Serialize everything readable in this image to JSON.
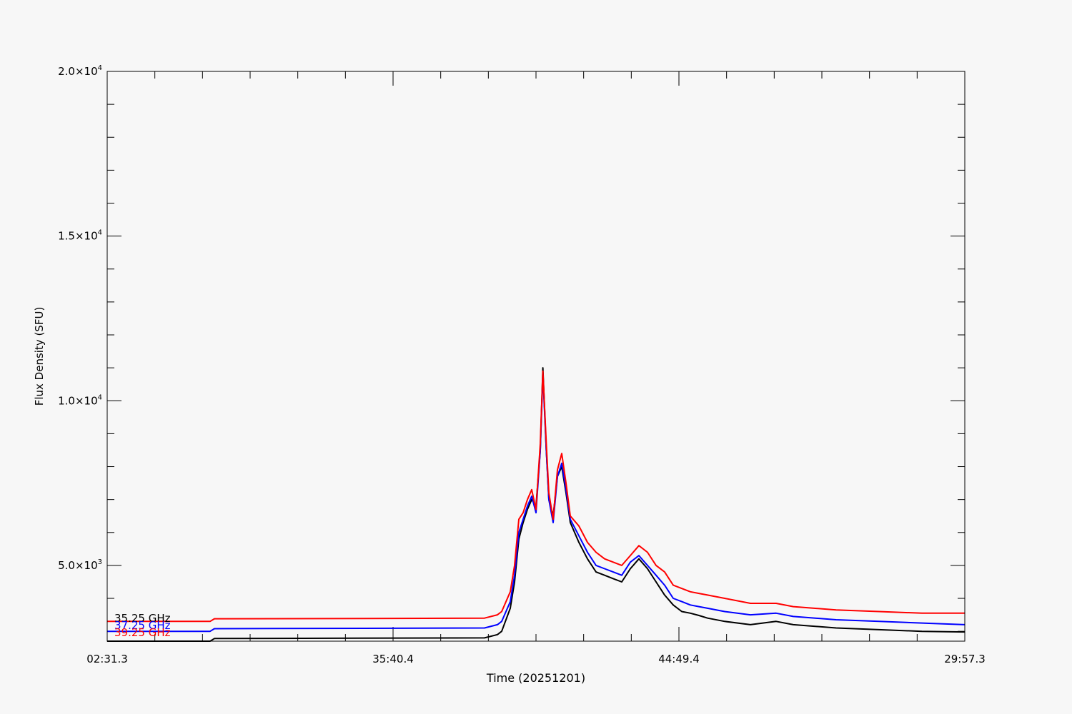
{
  "chart_data": {
    "type": "line",
    "xlabel": "Time (20251201)",
    "ylabel": "Flux Density (SFU)",
    "ylim": [
      2700,
      20000
    ],
    "grid": false,
    "legend_placement": "bottom-left",
    "x_ticks": [
      "02:31.3",
      "35:40.4",
      "44:49.4",
      "29:57.3"
    ],
    "y_ticks": [
      {
        "value": 5000,
        "mantissa": "5.0",
        "exp": "3"
      },
      {
        "value": 10000,
        "mantissa": "1.0",
        "exp": "4"
      },
      {
        "value": 15000,
        "mantissa": "1.5",
        "exp": "4"
      },
      {
        "value": 20000,
        "mantissa": "2.0",
        "exp": "4"
      }
    ],
    "x": [
      0,
      0.12,
      0.125,
      0.3,
      0.44,
      0.455,
      0.46,
      0.47,
      0.475,
      0.48,
      0.485,
      0.49,
      0.495,
      0.5,
      0.505,
      0.508,
      0.512,
      0.515,
      0.52,
      0.525,
      0.53,
      0.535,
      0.54,
      0.55,
      0.56,
      0.57,
      0.58,
      0.59,
      0.6,
      0.61,
      0.62,
      0.63,
      0.64,
      0.65,
      0.66,
      0.67,
      0.68,
      0.69,
      0.7,
      0.72,
      0.75,
      0.78,
      0.8,
      0.85,
      0.9,
      0.95,
      1.0
    ],
    "series": [
      {
        "name": "35.25 GHz",
        "color": "#000000",
        "values": [
          2700,
          2700,
          2780,
          2790,
          2800,
          2900,
          3000,
          3700,
          4500,
          5800,
          6300,
          6700,
          7000,
          6800,
          8500,
          11000,
          8500,
          7000,
          6500,
          7700,
          8000,
          7200,
          6300,
          5700,
          5200,
          4800,
          4700,
          4600,
          4500,
          4900,
          5200,
          4900,
          4500,
          4100,
          3800,
          3600,
          3550,
          3480,
          3400,
          3300,
          3200,
          3300,
          3200,
          3100,
          3050,
          3000,
          2980
        ]
      },
      {
        "name": "37.25 GHz",
        "color": "#0000ff",
        "values": [
          3000,
          3000,
          3080,
          3090,
          3100,
          3200,
          3300,
          3900,
          4700,
          6000,
          6400,
          6800,
          7100,
          6600,
          8500,
          10800,
          8500,
          7000,
          6300,
          7700,
          8100,
          7300,
          6400,
          5900,
          5400,
          5000,
          4900,
          4800,
          4700,
          5100,
          5300,
          5000,
          4700,
          4400,
          4000,
          3900,
          3800,
          3750,
          3700,
          3600,
          3500,
          3550,
          3450,
          3350,
          3300,
          3250,
          3200
        ]
      },
      {
        "name": "39.25 GHz",
        "color": "#ff0000",
        "values": [
          3300,
          3300,
          3380,
          3390,
          3400,
          3500,
          3600,
          4200,
          5000,
          6400,
          6600,
          7000,
          7300,
          6700,
          8700,
          10900,
          8700,
          7200,
          6400,
          7900,
          8400,
          7500,
          6500,
          6200,
          5700,
          5400,
          5200,
          5100,
          5000,
          5300,
          5600,
          5400,
          5000,
          4800,
          4400,
          4300,
          4200,
          4150,
          4100,
          4000,
          3850,
          3850,
          3750,
          3650,
          3600,
          3550,
          3550
        ]
      }
    ]
  }
}
